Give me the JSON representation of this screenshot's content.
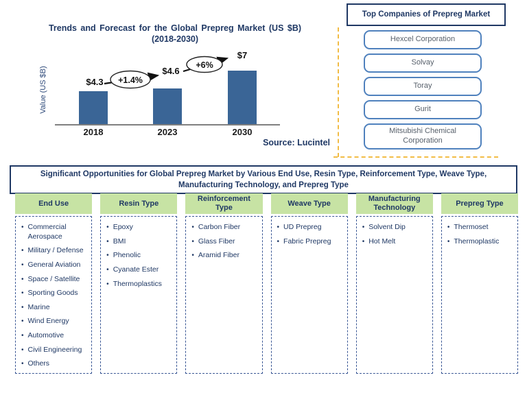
{
  "chart": {
    "title_line1": "Trends and Forecast for the Global Prepreg Market (US $B)",
    "title_line2": "(2018-2030)",
    "y_axis_label": "Value (US $B)",
    "source": "Source: Lucintel"
  },
  "chart_data": {
    "type": "bar",
    "title": "Trends and Forecast for the Global Prepreg Market (US $B) (2018-2030)",
    "categories": [
      "2018",
      "2023",
      "2030"
    ],
    "values": [
      4.3,
      4.6,
      7.0
    ],
    "bar_labels": [
      "$4.3",
      "$4.6",
      "$7"
    ],
    "growth_annotations": [
      {
        "label": "+1.4%",
        "from": "2018",
        "to": "2023"
      },
      {
        "label": "+6%",
        "from": "2023",
        "to": "2030"
      }
    ],
    "xlabel": "",
    "ylabel": "Value (US $B)",
    "ylim": [
      0,
      10
    ],
    "grid": false,
    "legend": false,
    "bar_color": "#3A6596",
    "source": "Source: Lucintel"
  },
  "top_companies": {
    "title": "Top Companies of Prepreg Market",
    "companies": [
      "Hexcel Corporation",
      "Solvay",
      "Toray",
      "Gurit",
      "Mitsubishi Chemical Corporation"
    ]
  },
  "banner": {
    "text": "Significant Opportunities for Global Prepreg Market by Various End Use, Resin Type, Reinforcement Type, Weave Type, Manufacturing Technology, and Prepreg Type"
  },
  "segments": [
    {
      "header": "End Use",
      "items": [
        "Commercial Aerospace",
        "Military / Defense",
        "General Aviation",
        "Space / Satellite",
        "Sporting Goods",
        "Marine",
        "Wind Energy",
        "Automotive",
        "Civil Engineering",
        "Others"
      ]
    },
    {
      "header": "Resin Type",
      "items": [
        "Epoxy",
        "BMI",
        "Phenolic",
        "Cyanate Ester",
        "Thermoplastics"
      ]
    },
    {
      "header": "Reinforcement Type",
      "items": [
        "Carbon Fiber",
        "Glass Fiber",
        "Aramid Fiber"
      ]
    },
    {
      "header": "Weave Type",
      "items": [
        "UD Prepreg",
        "Fabric Prepreg"
      ]
    },
    {
      "header": "Manufacturing Technology",
      "items": [
        "Solvent Dip",
        "Hot Melt"
      ]
    },
    {
      "header": "Prepreg Type",
      "items": [
        "Thermoset",
        "Thermoplastic"
      ]
    }
  ],
  "colors": {
    "navy": "#1F3864",
    "bar_blue": "#3A6596",
    "company_border_blue": "#4F81BD",
    "header_green": "#C7E3A4",
    "divider_yellow": "#F2BC45",
    "axis_gray": "#7F7F7F"
  }
}
